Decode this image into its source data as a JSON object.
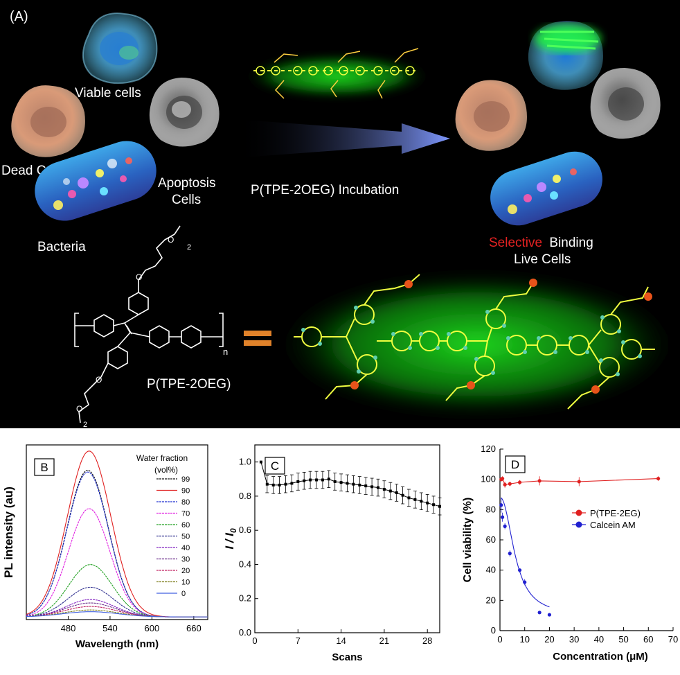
{
  "panelA": {
    "label": "(A)",
    "viable": "Viable cells",
    "dead": "Dead Cells",
    "apoptosis1": "Apoptosis",
    "apoptosis2": "Cells",
    "bacteria": "Bacteria",
    "incubation": "P(TPE-2OEG) Incubation",
    "selective": "Selective",
    "binding": "Binding",
    "livecells": "Live Cells",
    "polymer": "P(TPE-2OEG)",
    "sub_n": "n",
    "sub_2": "2",
    "colors": {
      "background": "#000000",
      "glow": "#22ff22",
      "accent": "#e52222",
      "arrow": "#7f98ff"
    }
  },
  "chart_data": [
    {
      "type": "line",
      "panel_label": "B",
      "xlabel": "Wavelength (nm)",
      "ylabel": "PL intensity (au)",
      "xlim": [
        420,
        680
      ],
      "x_ticks": [
        480,
        540,
        600,
        660
      ],
      "legend_title_1": "Water fraction",
      "legend_title_2": "(vol%)",
      "series": [
        {
          "name": "99",
          "color": "#111111",
          "peak_x": 508,
          "peak": 0.84,
          "width": 40
        },
        {
          "name": "90",
          "color": "#e02020",
          "peak_x": 510,
          "peak": 0.95,
          "width": 42
        },
        {
          "name": "80",
          "color": "#2030d0",
          "peak_x": 508,
          "peak": 0.83,
          "width": 40
        },
        {
          "name": "70",
          "color": "#e020e0",
          "peak_x": 510,
          "peak": 0.62,
          "width": 40
        },
        {
          "name": "60",
          "color": "#20a020",
          "peak_x": 512,
          "peak": 0.3,
          "width": 42
        },
        {
          "name": "50",
          "color": "#303090",
          "peak_x": 512,
          "peak": 0.17,
          "width": 44
        },
        {
          "name": "40",
          "color": "#8020c0",
          "peak_x": 512,
          "peak": 0.1,
          "width": 46
        },
        {
          "name": "30",
          "color": "#6a2a8a",
          "peak_x": 512,
          "peak": 0.08,
          "width": 48
        },
        {
          "name": "20",
          "color": "#c02060",
          "peak_x": 512,
          "peak": 0.06,
          "width": 50
        },
        {
          "name": "10",
          "color": "#808020",
          "peak_x": 512,
          "peak": 0.04,
          "width": 52
        },
        {
          "name": "0",
          "color": "#4060e0",
          "peak_x": 512,
          "peak": 0.03,
          "width": 54
        }
      ]
    },
    {
      "type": "line",
      "panel_label": "C",
      "xlabel": "Scans",
      "ylabel": "I / I0",
      "ylabel_main": "I / I",
      "ylabel_sub": "0",
      "xlim": [
        0,
        30
      ],
      "ylim": [
        0,
        1.1
      ],
      "x_ticks": [
        0,
        7,
        14,
        21,
        28
      ],
      "y_ticks": [
        0.0,
        0.2,
        0.4,
        0.6,
        0.8,
        1.0
      ],
      "y_tick_labels": [
        "0.0",
        "0.2",
        "0.4",
        "0.6",
        "0.8",
        "1.0"
      ],
      "x": [
        1,
        2,
        3,
        4,
        5,
        6,
        7,
        8,
        9,
        10,
        11,
        12,
        13,
        14,
        15,
        16,
        17,
        18,
        19,
        20,
        21,
        22,
        23,
        24,
        25,
        26,
        27,
        28,
        29,
        30
      ],
      "y": [
        1.0,
        0.87,
        0.865,
        0.865,
        0.87,
        0.875,
        0.885,
        0.89,
        0.895,
        0.895,
        0.895,
        0.9,
        0.885,
        0.88,
        0.875,
        0.87,
        0.865,
        0.86,
        0.855,
        0.85,
        0.84,
        0.83,
        0.82,
        0.805,
        0.79,
        0.78,
        0.77,
        0.76,
        0.75,
        0.74
      ],
      "err": 0.05
    },
    {
      "type": "line",
      "panel_label": "D",
      "xlabel": "Concentration (μM)",
      "ylabel": "Cell viability (%)",
      "xlim": [
        0,
        70
      ],
      "ylim": [
        0,
        120
      ],
      "x_ticks": [
        0,
        10,
        20,
        30,
        40,
        50,
        60,
        70
      ],
      "y_ticks": [
        0,
        20,
        40,
        60,
        80,
        100,
        120
      ],
      "series": [
        {
          "name": "P(TPE-2EG)",
          "color": "#e02020",
          "x": [
            0.5,
            1,
            2,
            4,
            8,
            16,
            32,
            64
          ],
          "y": [
            100,
            100.5,
            96.5,
            97,
            98,
            99,
            98.5,
            100.5
          ],
          "err": [
            1.5,
            1.5,
            2,
            1.5,
            1.5,
            3,
            3,
            1.5
          ]
        },
        {
          "name": "Calcein AM",
          "color": "#2020d0",
          "x": [
            0.5,
            1,
            2,
            4,
            8,
            10,
            16,
            20
          ],
          "y": [
            83,
            75,
            69,
            51,
            40,
            32,
            12,
            10.5
          ],
          "err": [
            5,
            3,
            2,
            2,
            1,
            2,
            0.5,
            0.5
          ]
        }
      ]
    }
  ]
}
